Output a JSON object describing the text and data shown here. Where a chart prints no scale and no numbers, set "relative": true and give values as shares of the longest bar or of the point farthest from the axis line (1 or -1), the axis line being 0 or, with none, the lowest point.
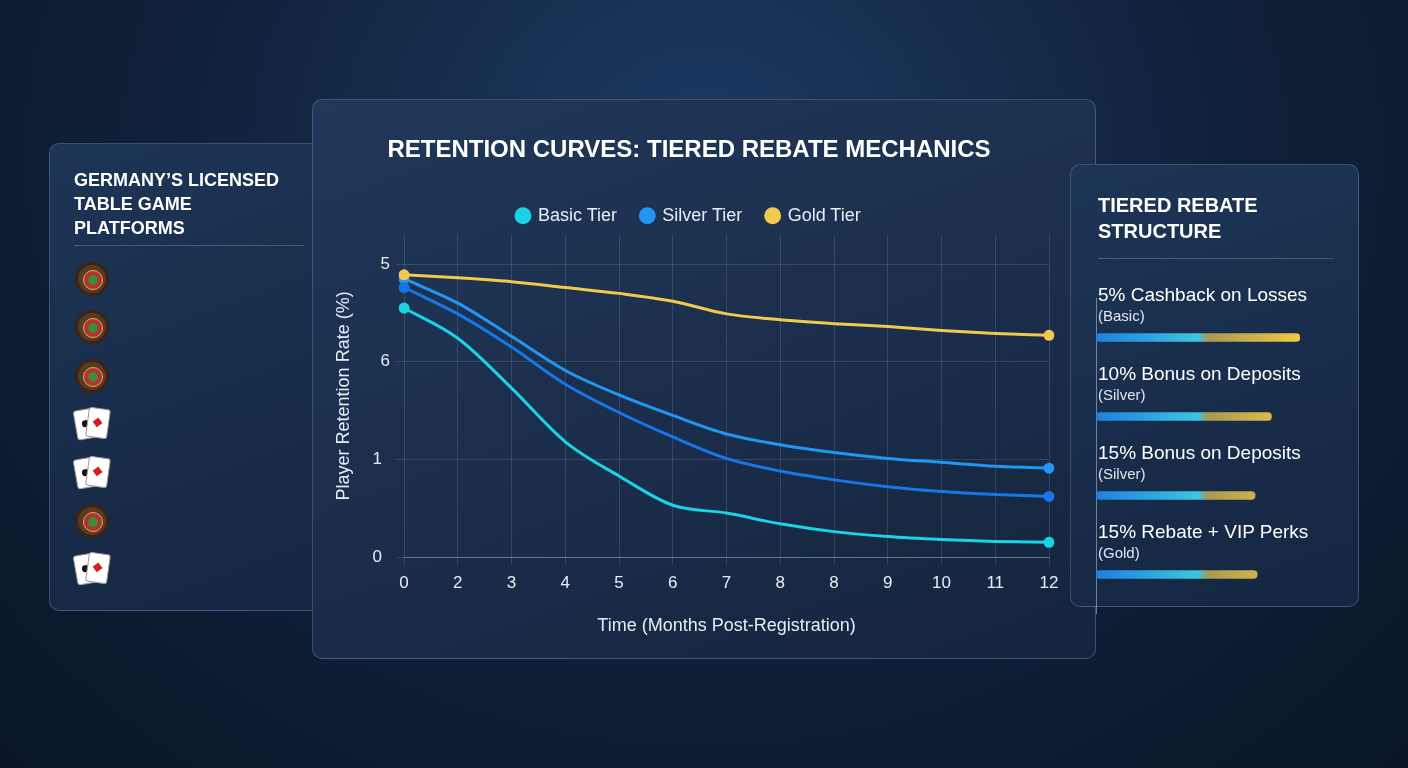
{
  "chart_data": [
    {
      "type": "other",
      "title": "GERMANY’S LICENSED TABLE GAME PLATFORMS"
    },
    {
      "type": "line",
      "title": "RETENTION CURVES: TIERED REBATE MECHANICS",
      "xlabel": "Time (Months Post-Registration)",
      "ylabel": "Player Retention Rate (%)",
      "categories": [
        "0",
        "2",
        "3",
        "4",
        "5",
        "6",
        "7",
        "8",
        "8",
        "9",
        "10",
        "11",
        "12"
      ],
      "series": [
        {
          "name": "Basic Tier",
          "color": "#19d3e6",
          "values": [
            2.55,
            2.24,
            1.73,
            1.18,
            0.83,
            0.53,
            0.45,
            0.34,
            0.26,
            0.21,
            0.18,
            0.16,
            0.15
          ]
        },
        {
          "name": "Silver Tier",
          "color": "#2196f3",
          "values": [
            2.85,
            2.6,
            2.26,
            1.91,
            1.66,
            1.45,
            1.26,
            1.15,
            1.07,
            1.01,
            0.97,
            0.93,
            0.91
          ]
        },
        {
          "name": "Gold Tier",
          "color": "#f2c94c",
          "values": [
            2.89,
            2.86,
            2.82,
            2.76,
            2.7,
            2.62,
            2.49,
            2.43,
            2.39,
            2.36,
            2.32,
            2.29,
            2.27
          ]
        },
        {
          "color": "#1677e8",
          "values": [
            2.76,
            2.49,
            2.15,
            1.77,
            1.48,
            1.23,
            1.01,
            0.88,
            0.79,
            0.72,
            0.67,
            0.64,
            0.62
          ]
        }
      ],
      "ylim": [
        0,
        3.3
      ],
      "yticks": [
        0,
        1,
        {
          "value": 2,
          "label": null
        },
        {
          "value": 3,
          "label": null
        }
      ],
      "annotations": [
        "6",
        "5"
      ],
      "grid": true,
      "legend": "top"
    },
    {
      "type": "bar",
      "orientation": "horizontal",
      "relative": true,
      "title": "TIERED REBATE STRUCTURE",
      "categories": [
        "5% Cashback on Losses",
        "10% Bonus on Deposits",
        "15% Bonus on Deposits",
        "15% Rebate + VIP Perks"
      ],
      "values": [
        1,
        0.86,
        0.78,
        0.79
      ],
      "color": "#f4c842",
      "annotations": [
        "(Basic)",
        "(Silver)",
        "(Silver)",
        "(Gold)"
      ]
    }
  ]
}
